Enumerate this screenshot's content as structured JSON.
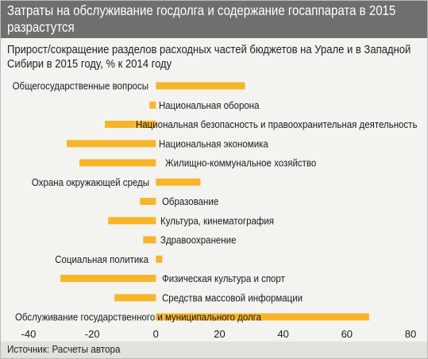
{
  "header": {
    "title": "Затраты на обслуживание госдолга и содержание госаппарата в 2015 разрастутся"
  },
  "subtitle": "Прирост/сокращение разделов расходных частей бюджетов на Урале и в Западной Сибири в 2015 году, % к 2014 году",
  "source": "Источник: Расчеты автора",
  "colors": {
    "bar": "#f7b52a",
    "header_bg": "#6f6f6f",
    "panel_bg": "#f3f3ef",
    "footer_bg": "#e2e2dc"
  },
  "chart_data": {
    "type": "bar",
    "orientation": "horizontal",
    "title": "",
    "xlabel": "",
    "ylabel": "",
    "xlim": [
      -40,
      80
    ],
    "xticks": [
      -40,
      -20,
      0,
      20,
      40,
      60,
      80
    ],
    "grid": false,
    "legend": "none",
    "categories": [
      "Общегосударственные вопросы",
      "Национальная оборона",
      "Национальная безопасность и правоохранительная деятельность",
      "Национальная экономика",
      "Жилищно-коммунальное хозяйство",
      "Охрана окружающей среды",
      "Образование",
      "Культура, кинематография",
      "Здравоохранение",
      "Социальная политика",
      "Физическая культура и спорт",
      "Средства массовой информации",
      "Обслуживание государственного и муниципального долга"
    ],
    "values": [
      28,
      -2,
      -16,
      -28,
      -24,
      14,
      -5,
      -15,
      -4,
      2,
      -30,
      -13,
      67
    ]
  }
}
